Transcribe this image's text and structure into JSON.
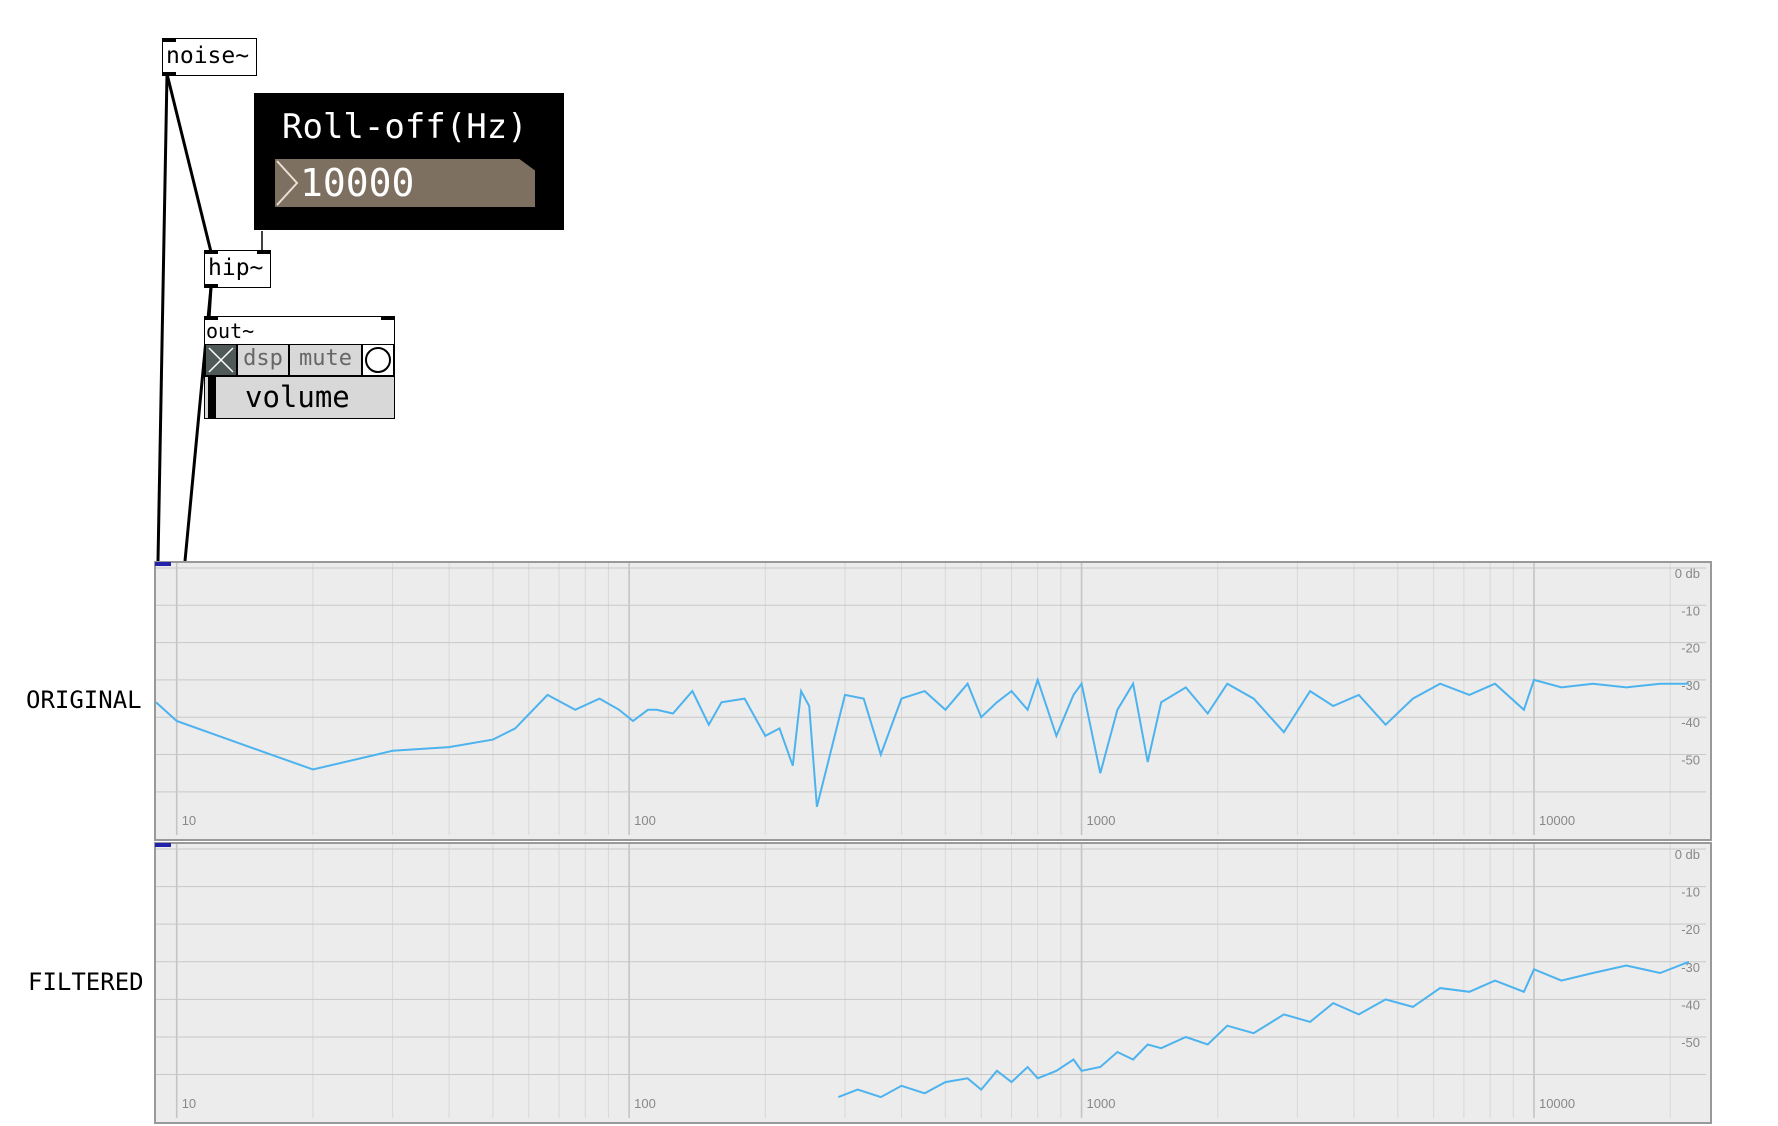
{
  "objects": {
    "noise": "noise~",
    "hip": "hip~",
    "out": "out~"
  },
  "rolloff": {
    "label": "Roll‐off(Hz)",
    "value": "10000"
  },
  "out_panel": {
    "dsp": "dsp",
    "mute": "mute",
    "volume": "volume"
  },
  "spectra": {
    "original_label": "ORIGINAL",
    "filtered_label": "FILTERED",
    "db_labels": [
      "0 db",
      "-10",
      "-20",
      "-30",
      "-40",
      "-50"
    ],
    "freq_labels": [
      "10",
      "100",
      "1000",
      "10000"
    ]
  },
  "colors": {
    "trace": "#4db3ee",
    "grid": "#cfcfcf",
    "graph_bg": "#ececec",
    "number_box": "#7d7060"
  },
  "chart_data": [
    {
      "type": "line",
      "title": "ORIGINAL",
      "x_scale": "log",
      "xlim": [
        9,
        24000
      ],
      "ylim": [
        -65,
        0
      ],
      "x_ticks": [
        10,
        100,
        1000,
        10000
      ],
      "y_ticks": [
        0,
        -10,
        -20,
        -30,
        -40,
        -50
      ],
      "grid": true,
      "series": [
        {
          "x": [
            9,
            10,
            20,
            30,
            40,
            50,
            56,
            66,
            76,
            86,
            95,
            102,
            110,
            115,
            125,
            138,
            150,
            160,
            180,
            200,
            215,
            230,
            240,
            250,
            260,
            300,
            330,
            360,
            400,
            450,
            500,
            560,
            600,
            650,
            700,
            760,
            800,
            880,
            960,
            1000,
            1100,
            1200,
            1300,
            1400,
            1500,
            1700,
            1900,
            2100,
            2400,
            2800,
            3200,
            3600,
            4100,
            4700,
            5400,
            6200,
            7200,
            8200,
            9500,
            10000,
            11500,
            13500,
            16000,
            19000,
            22000
          ],
          "y": [
            -36,
            -41,
            -54,
            -49,
            -48,
            -46,
            -43,
            -34,
            -38,
            -35,
            -38,
            -41,
            -38,
            -38,
            -39,
            -33,
            -42,
            -36,
            -35,
            -45,
            -43,
            -53,
            -33,
            -37,
            -64,
            -34,
            -35,
            -50,
            -35,
            -33,
            -38,
            -31,
            -40,
            -36,
            -33,
            -38,
            -30,
            -45,
            -34,
            -31,
            -55,
            -38,
            -31,
            -52,
            -36,
            -32,
            -39,
            -31,
            -35,
            -44,
            -33,
            -37,
            -34,
            -42,
            -35,
            -31,
            -34,
            -31,
            -38,
            -30,
            -32,
            -31,
            -32,
            -31,
            -31
          ]
        }
      ]
    },
    {
      "type": "line",
      "title": "FILTERED",
      "x_scale": "log",
      "xlim": [
        9,
        24000
      ],
      "ylim": [
        -65,
        0
      ],
      "x_ticks": [
        10,
        100,
        1000,
        10000
      ],
      "y_ticks": [
        0,
        -10,
        -20,
        -30,
        -40,
        -50
      ],
      "grid": true,
      "series": [
        {
          "x": [
            290,
            320,
            360,
            400,
            450,
            500,
            560,
            600,
            650,
            700,
            760,
            800,
            880,
            960,
            1000,
            1100,
            1200,
            1300,
            1400,
            1500,
            1700,
            1900,
            2100,
            2400,
            2800,
            3200,
            3600,
            4100,
            4700,
            5400,
            6200,
            7200,
            8200,
            9500,
            10000,
            11500,
            13500,
            16000,
            19000,
            22000
          ],
          "y": [
            -66,
            -64,
            -66,
            -63,
            -65,
            -62,
            -61,
            -64,
            -59,
            -62,
            -58,
            -61,
            -59,
            -56,
            -59,
            -58,
            -54,
            -56,
            -52,
            -53,
            -50,
            -52,
            -47,
            -49,
            -44,
            -46,
            -41,
            -44,
            -40,
            -42,
            -37,
            -38,
            -35,
            -38,
            -32,
            -35,
            -33,
            -31,
            -33,
            -30
          ]
        }
      ]
    }
  ]
}
